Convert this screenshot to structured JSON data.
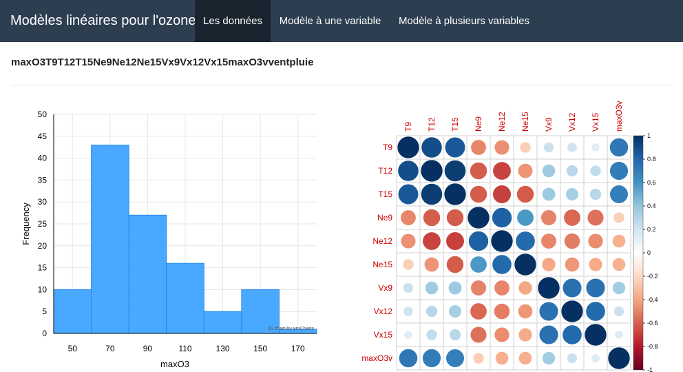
{
  "navbar": {
    "brand": "Modèles linéaires pour l'ozone",
    "tabs": [
      {
        "label": "Les données",
        "active": true
      },
      {
        "label": "Modèle à une variable",
        "active": false
      },
      {
        "label": "Modèle à plusieurs variables",
        "active": false
      }
    ],
    "bg_color": "#2c3e50",
    "active_color": "#1a242f"
  },
  "heading": "maxO3T9T12T15Ne9Ne12Ne15Vx9Vx12Vx15maxO3vventpluie",
  "chart_data": [
    {
      "type": "bar",
      "subtype": "histogram",
      "bins": [
        [
          40,
          60
        ],
        [
          60,
          80
        ],
        [
          80,
          100
        ],
        [
          100,
          120
        ],
        [
          120,
          140
        ],
        [
          140,
          160
        ],
        [
          160,
          180
        ]
      ],
      "values": [
        10,
        43,
        27,
        16,
        5,
        10,
        1
      ],
      "xticks": [
        50,
        70,
        90,
        110,
        130,
        150,
        170
      ],
      "yticks": [
        0,
        5,
        10,
        15,
        20,
        25,
        30,
        35,
        40,
        45,
        50
      ],
      "xlabel": "maxO3",
      "ylabel": "Frequency",
      "xlim": [
        40,
        180
      ],
      "ylim": [
        0,
        50
      ],
      "grid": true,
      "color": "#3fa3ff",
      "credit": "JS chart by amCharts"
    },
    {
      "type": "heatmap",
      "subtype": "correlation-circles",
      "top_labels": [
        "T9",
        "T12",
        "T15",
        "Ne9",
        "Ne12",
        "Ne15",
        "Vx9",
        "Vx12",
        "Vx15",
        "maxO3v"
      ],
      "row_labels": [
        "T9",
        "T12",
        "T15",
        "Ne9",
        "Ne12",
        "Ne15",
        "Vx9",
        "Vx12",
        "Vx15",
        "maxO3v"
      ],
      "matrix": [
        [
          1.0,
          0.89,
          0.85,
          -0.49,
          -0.46,
          -0.25,
          0.22,
          0.2,
          0.14,
          0.72
        ],
        [
          0.89,
          1.0,
          0.95,
          -0.61,
          -0.68,
          -0.45,
          0.36,
          0.28,
          0.25,
          0.7
        ],
        [
          0.85,
          0.95,
          1.0,
          -0.61,
          -0.69,
          -0.61,
          0.37,
          0.34,
          0.28,
          0.69
        ],
        [
          -0.49,
          -0.61,
          -0.61,
          1.0,
          0.82,
          0.58,
          -0.5,
          -0.58,
          -0.55,
          -0.25
        ],
        [
          -0.46,
          -0.68,
          -0.69,
          0.82,
          1.0,
          0.78,
          -0.49,
          -0.52,
          -0.47,
          -0.36
        ],
        [
          -0.25,
          -0.45,
          -0.61,
          0.58,
          0.78,
          1.0,
          -0.39,
          -0.44,
          -0.38,
          -0.36
        ],
        [
          0.22,
          0.36,
          0.37,
          -0.5,
          -0.49,
          -0.39,
          1.0,
          0.75,
          0.75,
          0.35
        ],
        [
          0.2,
          0.28,
          0.34,
          -0.58,
          -0.52,
          -0.44,
          0.75,
          1.0,
          0.78,
          0.22
        ],
        [
          0.14,
          0.25,
          0.28,
          -0.55,
          -0.47,
          -0.38,
          0.75,
          0.78,
          1.0,
          0.15
        ],
        [
          0.72,
          0.7,
          0.69,
          -0.25,
          -0.36,
          -0.36,
          0.35,
          0.22,
          0.15,
          1.0
        ]
      ],
      "colorbar_ticks": [
        "1",
        "0.8",
        "0.6",
        "0.4",
        "0.2",
        "0",
        "-0.2",
        "-0.4",
        "-0.6",
        "-0.8",
        "-1"
      ],
      "label_color": "#d00000"
    }
  ]
}
